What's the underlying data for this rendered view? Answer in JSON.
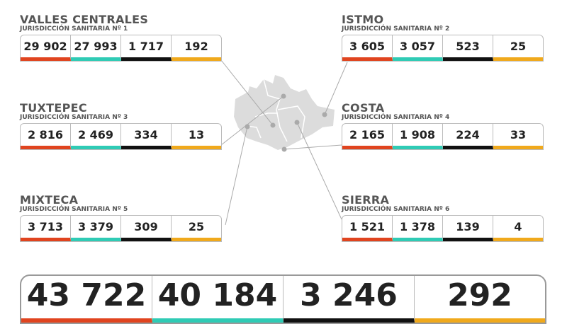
{
  "colors": {
    "confirmed": "#e0441f",
    "recovered": "#2fcbb5",
    "deaths": "#111111",
    "active": "#f0a91c"
  },
  "regions": [
    {
      "name": "VALLES CENTRALES",
      "subtitle": "JURISDICCIÓN SANITARIA Nº 1",
      "values": [
        "29 902",
        "27 993",
        "1 717",
        "192"
      ]
    },
    {
      "name": "ISTMO",
      "subtitle": "JURISDICCIÓN SANITARIA Nº 2",
      "values": [
        "3 605",
        "3 057",
        "523",
        "25"
      ]
    },
    {
      "name": "TUXTEPEC",
      "subtitle": "JURISDICCIÓN SANITARIA Nº 3",
      "values": [
        "2 816",
        "2 469",
        "334",
        "13"
      ]
    },
    {
      "name": "COSTA",
      "subtitle": "JURISDICCIÓN SANITARIA Nº 4",
      "values": [
        "2 165",
        "1 908",
        "224",
        "33"
      ]
    },
    {
      "name": "MIXTECA",
      "subtitle": "JURISDICCIÓN SANITARIA Nº 5",
      "values": [
        "3 713",
        "3 379",
        "309",
        "25"
      ]
    },
    {
      "name": "SIERRA",
      "subtitle": "JURISDICCIÓN SANITARIA Nº 6",
      "values": [
        "1 521",
        "1 378",
        "139",
        "4"
      ]
    }
  ],
  "totals": [
    "43 722",
    "40 184",
    "3 246",
    "292"
  ]
}
